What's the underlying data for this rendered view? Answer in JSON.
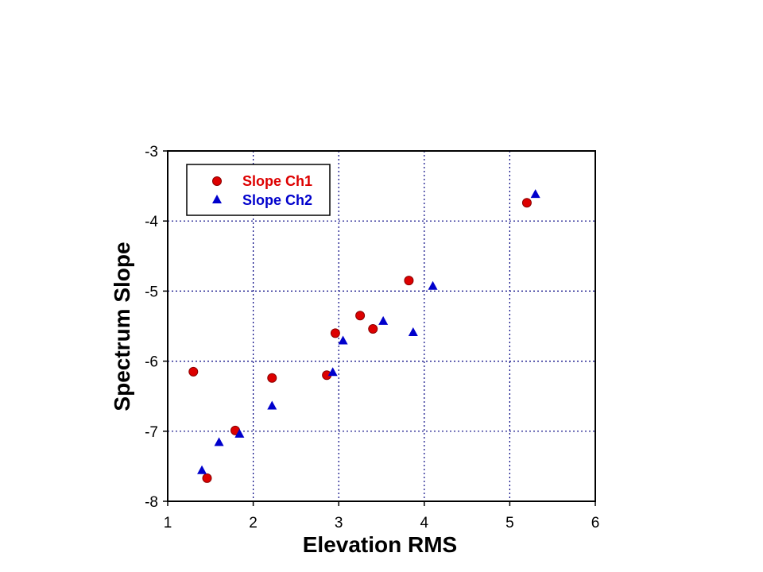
{
  "chart_data": {
    "type": "scatter",
    "title": "",
    "xlabel": "Elevation RMS",
    "ylabel": "Spectrum Slope",
    "xlim": [
      1,
      6
    ],
    "ylim": [
      -8,
      -3
    ],
    "xticks": [
      "1",
      "2",
      "3",
      "4",
      "5",
      "6"
    ],
    "yticks": [
      "-3",
      "-4",
      "-5",
      "-6",
      "-7",
      "-8"
    ],
    "grid": true,
    "legend_position": "top-left",
    "series": [
      {
        "name": "Slope Ch1",
        "marker": "circle",
        "color": "#dd0000",
        "points": [
          {
            "x": 1.3,
            "y": -6.15
          },
          {
            "x": 1.46,
            "y": -7.67
          },
          {
            "x": 1.79,
            "y": -6.99
          },
          {
            "x": 2.22,
            "y": -6.24
          },
          {
            "x": 2.86,
            "y": -6.2
          },
          {
            "x": 2.96,
            "y": -5.6
          },
          {
            "x": 3.25,
            "y": -5.35
          },
          {
            "x": 3.4,
            "y": -5.54
          },
          {
            "x": 3.82,
            "y": -4.85
          },
          {
            "x": 5.2,
            "y": -3.74
          }
        ]
      },
      {
        "name": "Slope Ch2",
        "marker": "triangle",
        "color": "#0000cc",
        "points": [
          {
            "x": 1.4,
            "y": -7.56
          },
          {
            "x": 1.6,
            "y": -7.16
          },
          {
            "x": 1.84,
            "y": -7.04
          },
          {
            "x": 2.22,
            "y": -6.64
          },
          {
            "x": 2.93,
            "y": -6.16
          },
          {
            "x": 3.05,
            "y": -5.71
          },
          {
            "x": 3.52,
            "y": -5.43
          },
          {
            "x": 3.87,
            "y": -5.59
          },
          {
            "x": 4.1,
            "y": -4.93
          },
          {
            "x": 5.3,
            "y": -3.62
          }
        ]
      }
    ]
  }
}
